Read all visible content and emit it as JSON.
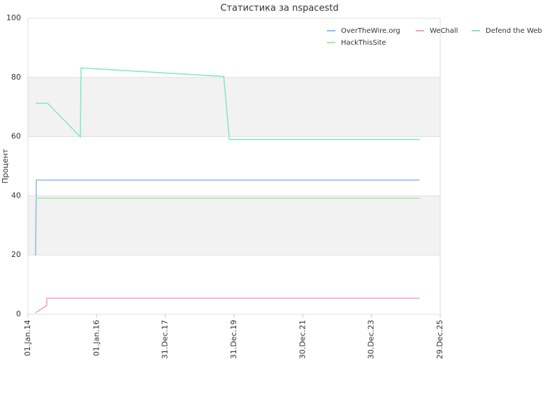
{
  "chart_data": {
    "type": "line",
    "title": "Статистика за nspacestd",
    "y_label": "Процент",
    "ylim": [
      0,
      100
    ],
    "yticks": [
      0,
      20,
      40,
      60,
      80,
      100
    ],
    "xlim": [
      "2014-01-01",
      "2025-12-29"
    ],
    "xticks": [
      {
        "value": "2014-01-01",
        "label": "01.Jan.14"
      },
      {
        "value": "2016-01-01",
        "label": "01.Jan.16"
      },
      {
        "value": "2017-12-31",
        "label": "31.Dec.17"
      },
      {
        "value": "2019-12-31",
        "label": "31.Dec.19"
      },
      {
        "value": "2021-12-30",
        "label": "30.Dec.21"
      },
      {
        "value": "2023-12-30",
        "label": "30.Dec.23"
      },
      {
        "value": "2025-12-29",
        "label": "29.Dec.25"
      }
    ],
    "grid": true,
    "band_color": "#f2f2f2",
    "legend_position": "top-right",
    "series": [
      {
        "name": "OverTheWire.org",
        "color": "#88bbee",
        "x": [
          "2014-03-24",
          "2014-03-27",
          "2014-03-31",
          "2025-05-24"
        ],
        "values": [
          19.8,
          31,
          45.3,
          45.3
        ]
      },
      {
        "name": "WeChall",
        "color": "#f0a0c8",
        "x": [
          "2014-03-24",
          "2014-07-20",
          "2014-07-21",
          "2025-05-24"
        ],
        "values": [
          0.5,
          3,
          5.4,
          5.4
        ]
      },
      {
        "name": "Defend the Web",
        "color": "#80e8c0",
        "x": [
          "2014-03-24",
          "2014-07-28",
          "2015-07-12",
          "2015-07-19",
          "2019-09-12",
          "2019-11-11",
          "2025-05-24"
        ],
        "values": [
          71.3,
          71.3,
          59.9,
          83.2,
          80.3,
          59.0,
          59.0
        ]
      },
      {
        "name": "HackThisSite",
        "color": "#a8e8a0",
        "x": [
          "2014-03-24",
          "2025-05-24"
        ],
        "values": [
          39.2,
          39.2
        ]
      }
    ]
  }
}
